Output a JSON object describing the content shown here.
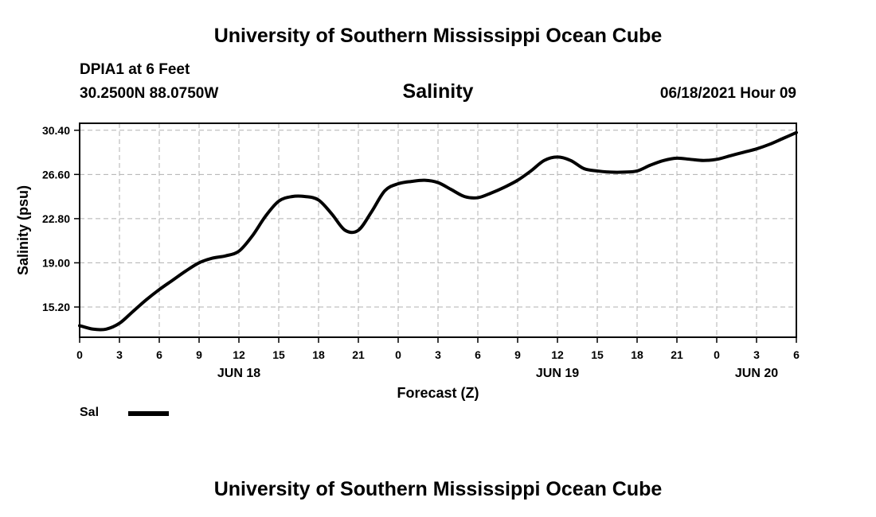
{
  "header": {
    "title": "University of Southern Mississippi Ocean Cube",
    "station": "DPIA1 at 6 Feet",
    "coords": "30.2500N  88.0750W",
    "variable": "Salinity",
    "datetime": "06/18/2021 Hour 09"
  },
  "footer": {
    "title": "University of Southern Mississippi Ocean Cube"
  },
  "legend": {
    "label": "Sal"
  },
  "colors": {
    "line": "#000000",
    "grid": "#b0b0b0"
  },
  "chart_data": {
    "type": "line",
    "title": "Salinity",
    "xlabel": "Forecast (Z)",
    "ylabel": "Salinity (psu)",
    "xlim": [
      0,
      54
    ],
    "ylim": [
      12.6,
      31.0
    ],
    "yticks": [
      15.2,
      19.0,
      22.8,
      26.6,
      30.4
    ],
    "ytick_labels": [
      "15.20",
      "19.00",
      "22.80",
      "26.60",
      "30.40"
    ],
    "xticks": [
      0,
      3,
      6,
      9,
      12,
      15,
      18,
      21,
      24,
      27,
      30,
      33,
      36,
      39,
      42,
      45,
      48,
      51,
      54
    ],
    "xtick_labels": [
      "0",
      "3",
      "6",
      "9",
      "12",
      "15",
      "18",
      "21",
      "0",
      "3",
      "6",
      "9",
      "12",
      "15",
      "18",
      "21",
      "0",
      "3",
      "6"
    ],
    "date_labels": [
      {
        "label": "JUN 18",
        "at": 12
      },
      {
        "label": "JUN 19",
        "at": 36
      },
      {
        "label": "JUN 20",
        "at": 51
      }
    ],
    "grid": true,
    "series": [
      {
        "name": "Sal",
        "x": [
          0,
          1,
          2,
          3,
          4,
          5,
          6,
          7,
          8,
          9,
          10,
          11,
          12,
          13,
          14,
          15,
          16,
          17,
          18,
          19,
          20,
          21,
          22,
          23,
          24,
          25,
          26,
          27,
          28,
          29,
          30,
          31,
          32,
          33,
          34,
          35,
          36,
          37,
          38,
          39,
          40,
          41,
          42,
          43,
          44,
          45,
          46,
          47,
          48,
          49,
          50,
          51,
          52,
          53,
          54
        ],
        "values": [
          13.6,
          13.3,
          13.3,
          13.8,
          14.8,
          15.8,
          16.7,
          17.5,
          18.3,
          19.0,
          19.4,
          19.6,
          20.0,
          21.3,
          23.0,
          24.3,
          24.7,
          24.7,
          24.4,
          23.2,
          21.8,
          21.8,
          23.4,
          25.2,
          25.8,
          26.0,
          26.1,
          25.9,
          25.3,
          24.7,
          24.6,
          25.0,
          25.5,
          26.1,
          26.9,
          27.8,
          28.1,
          27.8,
          27.1,
          26.9,
          26.8,
          26.8,
          26.9,
          27.4,
          27.8,
          28.0,
          27.9,
          27.8,
          27.9,
          28.2,
          28.5,
          28.8,
          29.2,
          29.7,
          30.2
        ]
      }
    ]
  }
}
